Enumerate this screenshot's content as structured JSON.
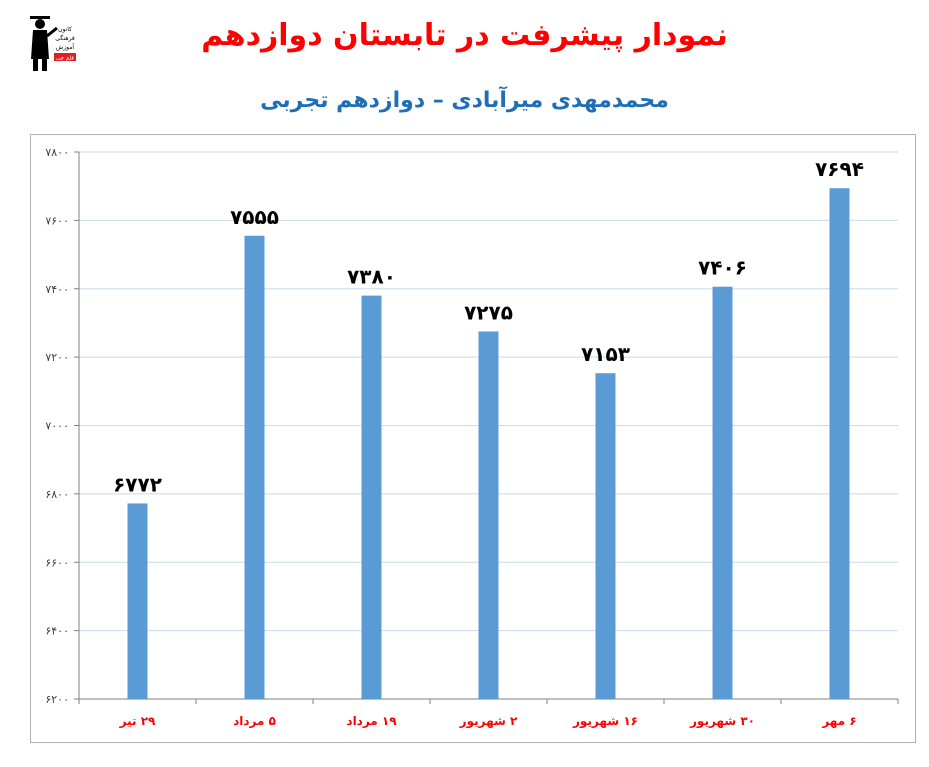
{
  "header": {
    "title": "نمودار پیشرفت در تابستان دوازدهم",
    "subtitle": "محمدمهدی میرآبادی – دوازدهم تجربی"
  },
  "logo": {
    "icon": "graduate-logo-icon",
    "line1": "کانون",
    "line2": "فرهنگی",
    "line3": "آموزش",
    "line4": "قلم چی"
  },
  "chart_data": {
    "type": "bar",
    "categories": [
      "۲۹ تیر",
      "۵ مرداد",
      "۱۹ مرداد",
      "۲ شهریور",
      "۱۶ شهریور",
      "۳۰ شهریور",
      "۶ مهر"
    ],
    "values": [
      6772,
      7555,
      7380,
      7275,
      7153,
      7406,
      7694
    ],
    "value_labels": [
      "۶۷۷۲",
      "۷۵۵۵",
      "۷۳۸۰",
      "۷۲۷۵",
      "۷۱۵۳",
      "۷۴۰۶",
      "۷۶۹۴"
    ],
    "ylim": [
      6200,
      7800
    ],
    "yticks": [
      6200,
      6400,
      6600,
      6800,
      7000,
      7200,
      7400,
      7600,
      7800
    ],
    "ytick_labels": [
      "۶۲۰۰",
      "۶۴۰۰",
      "۶۶۰۰",
      "۶۸۰۰",
      "۷۰۰۰",
      "۷۲۰۰",
      "۷۴۰۰",
      "۷۶۰۰",
      "۷۸۰۰"
    ],
    "grid": true,
    "legend": "none",
    "colors": {
      "bar": "#5b9bd5",
      "grid": "#c9dbee",
      "category_label": "#ff0000",
      "value_label": "#000000",
      "tick_label": "#404040"
    }
  }
}
